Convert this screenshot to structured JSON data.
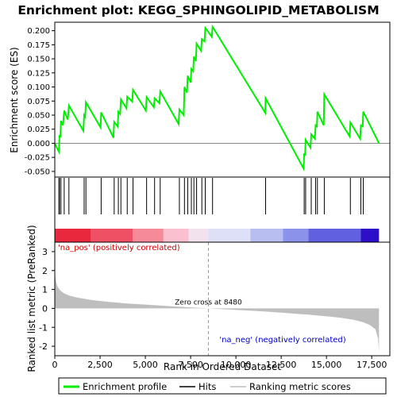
{
  "chart_data": {
    "type": "line",
    "title": "Enrichment plot: KEGG_SPHINGOLIPID_METABOLISM",
    "top_panel": {
      "ylabel": "Enrichment score (ES)",
      "ylim": [
        -0.06,
        0.215
      ],
      "yticks": [
        "0.200",
        "0.175",
        "0.150",
        "0.125",
        "0.100",
        "0.075",
        "0.050",
        "0.025",
        "0.000",
        "-0.025",
        "-0.050"
      ],
      "ytick_values": [
        0.2,
        0.175,
        0.15,
        0.125,
        0.1,
        0.075,
        0.05,
        0.025,
        0.0,
        -0.025,
        -0.05
      ],
      "series_name": "Enrichment profile",
      "color": "#00ee00",
      "profile": [
        [
          0,
          0.0
        ],
        [
          20,
          -0.002
        ],
        [
          230,
          -0.015
        ],
        [
          260,
          0.013
        ],
        [
          310,
          0.012
        ],
        [
          340,
          0.04
        ],
        [
          450,
          0.032
        ],
        [
          520,
          0.058
        ],
        [
          720,
          0.042
        ],
        [
          780,
          0.067
        ],
        [
          1580,
          0.022
        ],
        [
          1620,
          0.05
        ],
        [
          1680,
          0.047
        ],
        [
          1720,
          0.073
        ],
        [
          2530,
          0.028
        ],
        [
          2560,
          0.055
        ],
        [
          3240,
          0.01
        ],
        [
          3280,
          0.038
        ],
        [
          3470,
          0.03
        ],
        [
          3510,
          0.056
        ],
        [
          3610,
          0.052
        ],
        [
          3650,
          0.078
        ],
        [
          3960,
          0.062
        ],
        [
          4000,
          0.083
        ],
        [
          4280,
          0.074
        ],
        [
          4320,
          0.095
        ],
        [
          5030,
          0.058
        ],
        [
          5070,
          0.082
        ],
        [
          5470,
          0.064
        ],
        [
          5510,
          0.08
        ],
        [
          5780,
          0.071
        ],
        [
          5820,
          0.092
        ],
        [
          6840,
          0.034
        ],
        [
          6880,
          0.06
        ],
        [
          7120,
          0.05
        ],
        [
          7160,
          0.1
        ],
        [
          7300,
          0.09
        ],
        [
          7340,
          0.12
        ],
        [
          7500,
          0.108
        ],
        [
          7540,
          0.132
        ],
        [
          7640,
          0.128
        ],
        [
          7680,
          0.154
        ],
        [
          7790,
          0.146
        ],
        [
          7830,
          0.177
        ],
        [
          8080,
          0.164
        ],
        [
          8120,
          0.185
        ],
        [
          8270,
          0.181
        ],
        [
          8310,
          0.205
        ],
        [
          8670,
          0.189
        ],
        [
          8710,
          0.207
        ],
        [
          11620,
          0.054
        ],
        [
          11640,
          0.08
        ],
        [
          13740,
          -0.045
        ],
        [
          13770,
          -0.018
        ],
        [
          13820,
          -0.022
        ],
        [
          13850,
          0.006
        ],
        [
          14120,
          -0.008
        ],
        [
          14160,
          0.016
        ],
        [
          14360,
          0.008
        ],
        [
          14400,
          0.032
        ],
        [
          14470,
          0.03
        ],
        [
          14500,
          0.056
        ],
        [
          14850,
          0.032
        ],
        [
          14880,
          0.087
        ],
        [
          16280,
          0.012
        ],
        [
          16320,
          0.037
        ],
        [
          16860,
          0.008
        ],
        [
          16900,
          0.032
        ],
        [
          17000,
          0.03
        ],
        [
          17030,
          0.056
        ],
        [
          17900,
          0.0
        ]
      ]
    },
    "hits_panel": {
      "series_name": "Hits",
      "positions": [
        230,
        260,
        340,
        520,
        780,
        1620,
        1720,
        2560,
        3280,
        3510,
        3650,
        4000,
        4320,
        5070,
        5510,
        5820,
        6880,
        7160,
        7340,
        7540,
        7680,
        7830,
        8120,
        8310,
        8710,
        11640,
        13770,
        13850,
        14160,
        14400,
        14500,
        14880,
        16320,
        16900,
        17030
      ]
    },
    "colorbar": {
      "pos_label": "'na_pos' (positively correlated)",
      "neg_label": "'na_neg' (negatively correlated)",
      "bands": [
        {
          "from": 0,
          "to": 2000,
          "color": "#e8283c"
        },
        {
          "from": 2000,
          "to": 4300,
          "color": "#f05064"
        },
        {
          "from": 4300,
          "to": 6000,
          "color": "#f68a98"
        },
        {
          "from": 6000,
          "to": 7400,
          "color": "#fbc0d0"
        },
        {
          "from": 7400,
          "to": 8480,
          "color": "#f2e2ee"
        },
        {
          "from": 8480,
          "to": 10800,
          "color": "#dde0f6"
        },
        {
          "from": 10800,
          "to": 12600,
          "color": "#b8bef0"
        },
        {
          "from": 12600,
          "to": 14000,
          "color": "#8a92ea"
        },
        {
          "from": 14000,
          "to": 16900,
          "color": "#6060e0"
        },
        {
          "from": 16900,
          "to": 17900,
          "color": "#2c10c8"
        }
      ]
    },
    "bottom_panel": {
      "ylabel": "Ranked list metric (PreRanked)",
      "ylim": [
        -2.5,
        3.5
      ],
      "yticks": [
        "3",
        "2",
        "1",
        "0",
        "-1",
        "-2"
      ],
      "ytick_values": [
        3,
        2,
        1,
        0,
        -1,
        -2
      ],
      "series_name": "Ranking metric scores",
      "zero_cross_label": "Zero cross at 8480",
      "zero_cross": 8480,
      "metric": [
        [
          0,
          1.9
        ],
        [
          60,
          1.45
        ],
        [
          150,
          1.15
        ],
        [
          300,
          0.95
        ],
        [
          500,
          0.8
        ],
        [
          800,
          0.68
        ],
        [
          1200,
          0.58
        ],
        [
          2000,
          0.45
        ],
        [
          3000,
          0.34
        ],
        [
          4000,
          0.26
        ],
        [
          5000,
          0.2
        ],
        [
          6000,
          0.14
        ],
        [
          7000,
          0.08
        ],
        [
          8480,
          0.0
        ],
        [
          10000,
          -0.08
        ],
        [
          11000,
          -0.13
        ],
        [
          12000,
          -0.19
        ],
        [
          13000,
          -0.26
        ],
        [
          14000,
          -0.33
        ],
        [
          15000,
          -0.42
        ],
        [
          15800,
          -0.5
        ],
        [
          16500,
          -0.6
        ],
        [
          17000,
          -0.72
        ],
        [
          17400,
          -0.88
        ],
        [
          17700,
          -1.1
        ],
        [
          17850,
          -1.6
        ],
        [
          17900,
          -2.3
        ]
      ]
    },
    "xaxis": {
      "xlabel": "Rank in Ordered Dataset",
      "xlim": [
        0,
        18500
      ],
      "xticks": [
        "0",
        "2,500",
        "5,000",
        "7,500",
        "10,000",
        "12,500",
        "15,000",
        "17,500"
      ],
      "xtick_values": [
        0,
        2500,
        5000,
        7500,
        10000,
        12500,
        15000,
        17500
      ]
    },
    "legend": {
      "placement": "bottom",
      "entries": [
        "Enrichment profile",
        "Hits",
        "Ranking metric scores"
      ]
    }
  }
}
